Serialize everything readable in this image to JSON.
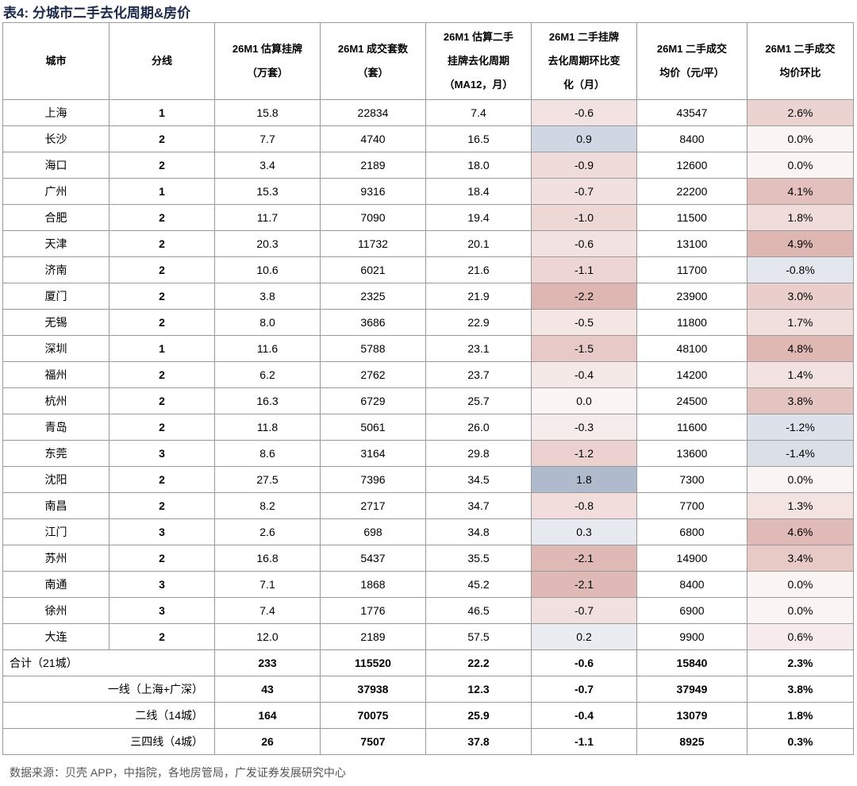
{
  "title": "表4:  分城市二手去化周期&房价",
  "table": {
    "header": [
      [
        "城市"
      ],
      [
        "分线"
      ],
      [
        "26M1 估算挂牌",
        "（万套）"
      ],
      [
        "26M1 成交套数",
        "（套）"
      ],
      [
        "26M1 估算二手",
        "挂牌去化周期",
        "（MA12，月）"
      ],
      [
        "26M1 二手挂牌",
        "去化周期环比变",
        "化（月）"
      ],
      [
        "26M1 二手成交",
        "均价（元/平）"
      ],
      [
        "26M1 二手成交",
        "均价环比"
      ]
    ],
    "rows": [
      [
        "上海",
        "1",
        "15.8",
        "22834",
        "7.4",
        "-0.6",
        "43547",
        "2.6%"
      ],
      [
        "长沙",
        "2",
        "7.7",
        "4740",
        "16.5",
        "0.9",
        "8400",
        "0.0%"
      ],
      [
        "海口",
        "2",
        "3.4",
        "2189",
        "18.0",
        "-0.9",
        "12600",
        "0.0%"
      ],
      [
        "广州",
        "1",
        "15.3",
        "9316",
        "18.4",
        "-0.7",
        "22200",
        "4.1%"
      ],
      [
        "合肥",
        "2",
        "11.7",
        "7090",
        "19.4",
        "-1.0",
        "11500",
        "1.8%"
      ],
      [
        "天津",
        "2",
        "20.3",
        "11732",
        "20.1",
        "-0.6",
        "13100",
        "4.9%"
      ],
      [
        "济南",
        "2",
        "10.6",
        "6021",
        "21.6",
        "-1.1",
        "11700",
        "-0.8%"
      ],
      [
        "厦门",
        "2",
        "3.8",
        "2325",
        "21.9",
        "-2.2",
        "23900",
        "3.0%"
      ],
      [
        "无锡",
        "2",
        "8.0",
        "3686",
        "22.9",
        "-0.5",
        "11800",
        "1.7%"
      ],
      [
        "深圳",
        "1",
        "11.6",
        "5788",
        "23.1",
        "-1.5",
        "48100",
        "4.8%"
      ],
      [
        "福州",
        "2",
        "6.2",
        "2762",
        "23.7",
        "-0.4",
        "14200",
        "1.4%"
      ],
      [
        "杭州",
        "2",
        "16.3",
        "6729",
        "25.7",
        "0.0",
        "24500",
        "3.8%"
      ],
      [
        "青岛",
        "2",
        "11.8",
        "5061",
        "26.0",
        "-0.3",
        "11600",
        "-1.2%"
      ],
      [
        "东莞",
        "3",
        "8.6",
        "3164",
        "29.8",
        "-1.2",
        "13600",
        "-1.4%"
      ],
      [
        "沈阳",
        "2",
        "27.5",
        "7396",
        "34.5",
        "1.8",
        "7300",
        "0.0%"
      ],
      [
        "南昌",
        "2",
        "8.2",
        "2717",
        "34.7",
        "-0.8",
        "7700",
        "1.3%"
      ],
      [
        "江门",
        "3",
        "2.6",
        "698",
        "34.8",
        "0.3",
        "6800",
        "4.6%"
      ],
      [
        "苏州",
        "2",
        "16.8",
        "5437",
        "35.5",
        "-2.1",
        "14900",
        "3.4%"
      ],
      [
        "南通",
        "3",
        "7.1",
        "1868",
        "45.2",
        "-2.1",
        "8400",
        "0.0%"
      ],
      [
        "徐州",
        "3",
        "7.4",
        "1776",
        "46.5",
        "-0.7",
        "6900",
        "0.0%"
      ],
      [
        "大连",
        "2",
        "12.0",
        "2189",
        "57.5",
        "0.2",
        "9900",
        "0.6%"
      ]
    ],
    "summary": [
      [
        "合计（21城）",
        "233",
        "115520",
        "22.2",
        "-0.6",
        "15840",
        "2.3%"
      ],
      [
        "一线（上海+广深）",
        "43",
        "37938",
        "12.3",
        "-0.7",
        "37949",
        "3.8%"
      ],
      [
        "二线（14城）",
        "164",
        "70075",
        "25.9",
        "-0.4",
        "13079",
        "1.8%"
      ],
      [
        "三四线（4城）",
        "26",
        "7507",
        "37.8",
        "-1.1",
        "8925",
        "0.3%"
      ]
    ]
  },
  "source": "数据来源：贝壳 APP，中指院，各地房管局，广发证券发展研究中心"
}
